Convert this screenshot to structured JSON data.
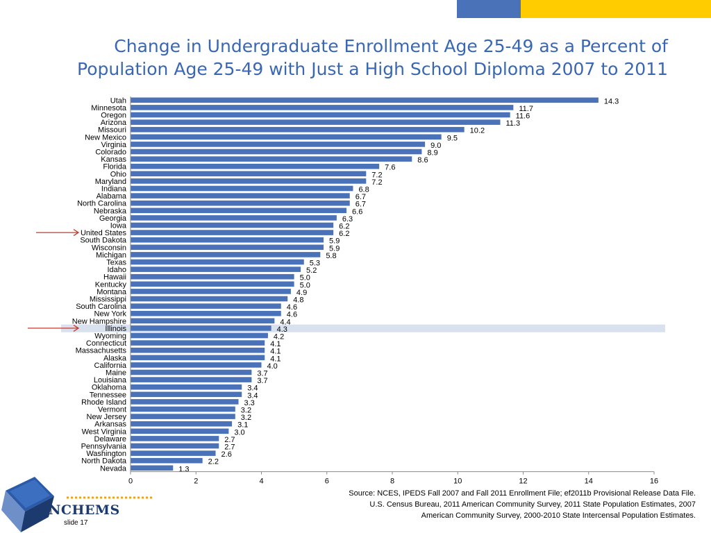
{
  "title_lines": [
    "Change in Undergraduate Enrollment Age 25-49 as a Percent of",
    "Population Age 25-49 with Just a High School Diploma 2007 to 2011"
  ],
  "source_lines": [
    "Source:  NCES, IPEDS Fall 2007 and Fall 2011 Enrollment File; ef2011b Provisional Release Data File.",
    "U.S. Census Bureau, 2011 American Community Survey, 2011 State Population Estimates, 2007",
    "American Community Survey, 2000-2010 State Intercensal Population Estimates."
  ],
  "logo": {
    "text": "NCHEMS"
  },
  "slide_label": "slide 17",
  "colors": {
    "bar": "#4a72b8",
    "title": "#3a67b3",
    "highlight": "#d9e1ee",
    "arrow": "#c0392b",
    "logo_blue": "#1d3a6e",
    "logo_dots": "#f0a020"
  },
  "chart_data": {
    "type": "bar",
    "orientation": "horizontal",
    "categories": [
      "Utah",
      "Minnesota",
      "Oregon",
      "Arizona",
      "Missouri",
      "New Mexico",
      "Virginia",
      "Colorado",
      "Kansas",
      "Florida",
      "Ohio",
      "Maryland",
      "Indiana",
      "Alabama",
      "North Carolina",
      "Nebraska",
      "Georgia",
      "Iowa",
      "United States",
      "South Dakota",
      "Wisconsin",
      "Michigan",
      "Texas",
      "Idaho",
      "Hawaii",
      "Kentucky",
      "Montana",
      "Mississippi",
      "South Carolina",
      "New York",
      "New Hampshire",
      "Illinois",
      "Wyoming",
      "Connecticut",
      "Massachusetts",
      "Alaska",
      "California",
      "Maine",
      "Louisiana",
      "Oklahoma",
      "Tennessee",
      "Rhode Island",
      "Vermont",
      "New Jersey",
      "Arkansas",
      "West Virginia",
      "Delaware",
      "Pennsylvania",
      "Washington",
      "North Dakota",
      "Nevada"
    ],
    "values": [
      14.3,
      11.7,
      11.6,
      11.3,
      10.2,
      9.5,
      9.0,
      8.9,
      8.6,
      7.6,
      7.2,
      7.2,
      6.8,
      6.7,
      6.7,
      6.6,
      6.3,
      6.2,
      6.2,
      5.9,
      5.9,
      5.8,
      5.3,
      5.2,
      5.0,
      5.0,
      4.9,
      4.8,
      4.6,
      4.6,
      4.4,
      4.3,
      4.2,
      4.1,
      4.1,
      4.1,
      4.0,
      3.7,
      3.7,
      3.4,
      3.4,
      3.3,
      3.2,
      3.2,
      3.1,
      3.0,
      2.7,
      2.7,
      2.6,
      2.2,
      1.3
    ],
    "data_labels": [
      "14.3",
      "11.7",
      "11.6",
      "11.3",
      "10.2",
      "9.5",
      "9.0",
      "8.9",
      "8.6",
      "7.6",
      "7.2",
      "7.2",
      "6.8",
      "6.7",
      "6.7",
      "6.6",
      "6.3",
      "6.2",
      "6.2",
      "5.9",
      "5.9",
      "5.8",
      "5.3",
      "5.2",
      "5.0",
      "5.0",
      "4.9",
      "4.8",
      "4.6",
      "4.6",
      "4.4",
      "4.3",
      "4.2",
      "4.1",
      "4.1",
      "4.1",
      "4.0",
      "3.7",
      "3.7",
      "3.4",
      "3.4",
      "3.3",
      "3.2",
      "3.2",
      "3.1",
      "3.0",
      "2.7",
      "2.7",
      "2.6",
      "2.2",
      "1.3"
    ],
    "xlim": [
      0,
      16
    ],
    "xticks": [
      "0",
      "2",
      "4",
      "6",
      "8",
      "10",
      "12",
      "14",
      "16"
    ],
    "grid": false,
    "highlighted_row": "Illinois",
    "arrowed_rows": [
      "United States",
      "Illinois"
    ]
  }
}
